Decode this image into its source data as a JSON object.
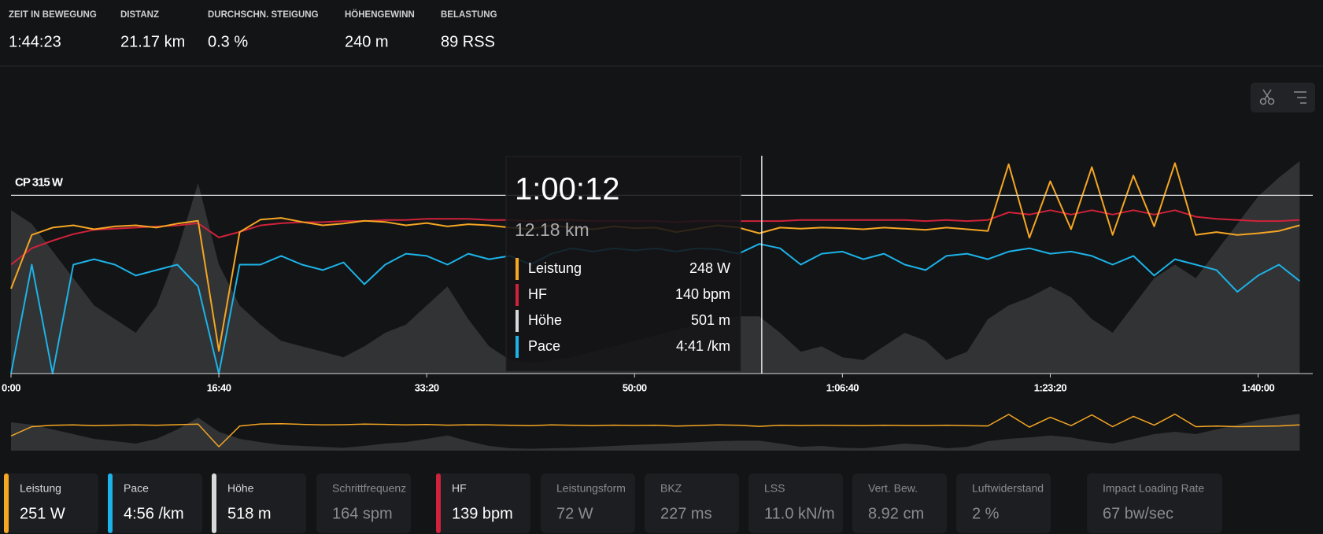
{
  "stats": [
    {
      "label": "ZEIT IN BEWEGUNG",
      "value": "1:44:23"
    },
    {
      "label": "DISTANZ",
      "value": "21.17 km"
    },
    {
      "label": "DURCHSCHN. STEIGUNG",
      "value": "0.3 %"
    },
    {
      "label": "HÖHENGEWINN",
      "value": "240 m"
    },
    {
      "label": "BELASTUNG",
      "value": "89 RSS"
    }
  ],
  "chart_data": {
    "type": "line",
    "x": [
      0,
      100,
      200,
      300,
      400,
      500,
      600,
      700,
      800,
      900,
      1000,
      1100,
      1200,
      1300,
      1400,
      1500,
      1600,
      1700,
      1800,
      1900,
      2000,
      2100,
      2200,
      2300,
      2400,
      2500,
      2600,
      2700,
      2800,
      2900,
      3000,
      3100,
      3200,
      3300,
      3400,
      3500,
      3600,
      3700,
      3800,
      3900,
      4000,
      4100,
      4200,
      4300,
      4400,
      4500,
      4600,
      4700,
      4800,
      4900,
      5000,
      5100,
      5200,
      5300,
      5400,
      5500,
      5600,
      5700,
      5800,
      5900,
      6000,
      6100,
      6200
    ],
    "xlim": [
      0,
      6263
    ],
    "xticks": [
      {
        "value": 0,
        "label": "0:00"
      },
      {
        "value": 1000,
        "label": "16:40"
      },
      {
        "value": 2000,
        "label": "33:20"
      },
      {
        "value": 3000,
        "label": "50:00"
      },
      {
        "value": 4000,
        "label": "1:06:40"
      },
      {
        "value": 5000,
        "label": "1:23:20"
      },
      {
        "value": 6000,
        "label": "1:40:00"
      }
    ],
    "reference": {
      "value": 315,
      "label": "CP 315 W"
    },
    "series": [
      {
        "name": "Leistung",
        "color": "#f5a623",
        "type": "line",
        "ylim": [
          0,
          385
        ],
        "values": [
          150,
          245,
          258,
          262,
          255,
          260,
          262,
          258,
          265,
          270,
          40,
          250,
          272,
          275,
          268,
          262,
          265,
          270,
          268,
          262,
          266,
          260,
          264,
          262,
          258,
          255,
          262,
          258,
          255,
          260,
          257,
          258,
          250,
          256,
          262,
          258,
          248,
          258,
          256,
          258,
          257,
          255,
          258,
          256,
          254,
          258,
          255,
          252,
          370,
          240,
          340,
          255,
          365,
          245,
          350,
          260,
          372,
          245,
          250,
          245,
          248,
          252,
          262
        ]
      },
      {
        "name": "HF",
        "color": "#d0223a",
        "type": "line",
        "ylim": [
          0,
          200
        ],
        "values": [
          100,
          115,
          122,
          128,
          132,
          133,
          134,
          135,
          136,
          138,
          125,
          130,
          136,
          138,
          139,
          139,
          140,
          140,
          141,
          141,
          142,
          142,
          142,
          141,
          141,
          140,
          141,
          141,
          140,
          140,
          140,
          140,
          139,
          140,
          140,
          140,
          140,
          140,
          141,
          141,
          141,
          141,
          141,
          141,
          140,
          141,
          140,
          141,
          148,
          146,
          150,
          146,
          150,
          146,
          150,
          146,
          150,
          144,
          142,
          141,
          140,
          140,
          141
        ]
      },
      {
        "name": "Höhe",
        "color": "#d9d9d9",
        "type": "area",
        "ylim": [
          480,
          560
        ],
        "values": [
          540,
          535,
          525,
          515,
          505,
          500,
          495,
          505,
          525,
          550,
          520,
          505,
          498,
          492,
          490,
          488,
          486,
          490,
          495,
          498,
          505,
          512,
          500,
          490,
          485,
          484,
          485,
          486,
          488,
          490,
          492,
          494,
          496,
          498,
          500,
          501,
          501,
          495,
          488,
          490,
          486,
          485,
          490,
          495,
          492,
          485,
          488,
          500,
          505,
          508,
          512,
          508,
          500,
          495,
          505,
          515,
          520,
          515,
          525,
          535,
          545,
          552,
          558
        ]
      },
      {
        "name": "Pace",
        "color": "#1cb3e8",
        "type": "line",
        "ylim": [
          400,
          200
        ],
        "values": [
          400,
          300,
          400,
          300,
          295,
          300,
          310,
          305,
          300,
          320,
          400,
          300,
          300,
          292,
          300,
          305,
          298,
          318,
          300,
          290,
          292,
          300,
          290,
          295,
          292,
          300,
          290,
          285,
          288,
          285,
          287,
          285,
          288,
          285,
          286,
          290,
          281,
          285,
          300,
          290,
          288,
          295,
          290,
          300,
          305,
          292,
          290,
          295,
          288,
          285,
          290,
          288,
          292,
          300,
          292,
          310,
          295,
          300,
          305,
          325,
          310,
          300,
          315
        ]
      }
    ],
    "tooltip": {
      "x": {
        "value": 3612,
        "label": "1:00:12"
      },
      "distance": "12.18 km",
      "value_labels": [
        "248 W",
        "140 bpm",
        "501 m",
        "4:41 /km"
      ]
    }
  },
  "cards": [
    {
      "label": "Leistung",
      "value": "251 W",
      "color": "#f5a623"
    },
    {
      "label": "Pace",
      "value": "4:56 /km",
      "color": "#1cb3e8"
    },
    {
      "label": "Höhe",
      "value": "518 m",
      "color": "#d9d9d9"
    },
    {
      "label": "Schrittfrequenz",
      "value": "164 spm"
    },
    {
      "label": "HF",
      "value": "139 bpm",
      "color": "#d0223a"
    },
    {
      "label": "Leistungsform",
      "value": "72 W"
    },
    {
      "label": "BKZ",
      "value": "227 ms"
    },
    {
      "label": "LSS",
      "value": "11.0 kN/m"
    },
    {
      "label": "Vert. Bew.",
      "value": "8.92 cm"
    },
    {
      "label": "Luftwiderstand",
      "value": "2 %"
    },
    {
      "label": "Impact Loading Rate",
      "value": "67 bw/sec"
    }
  ]
}
